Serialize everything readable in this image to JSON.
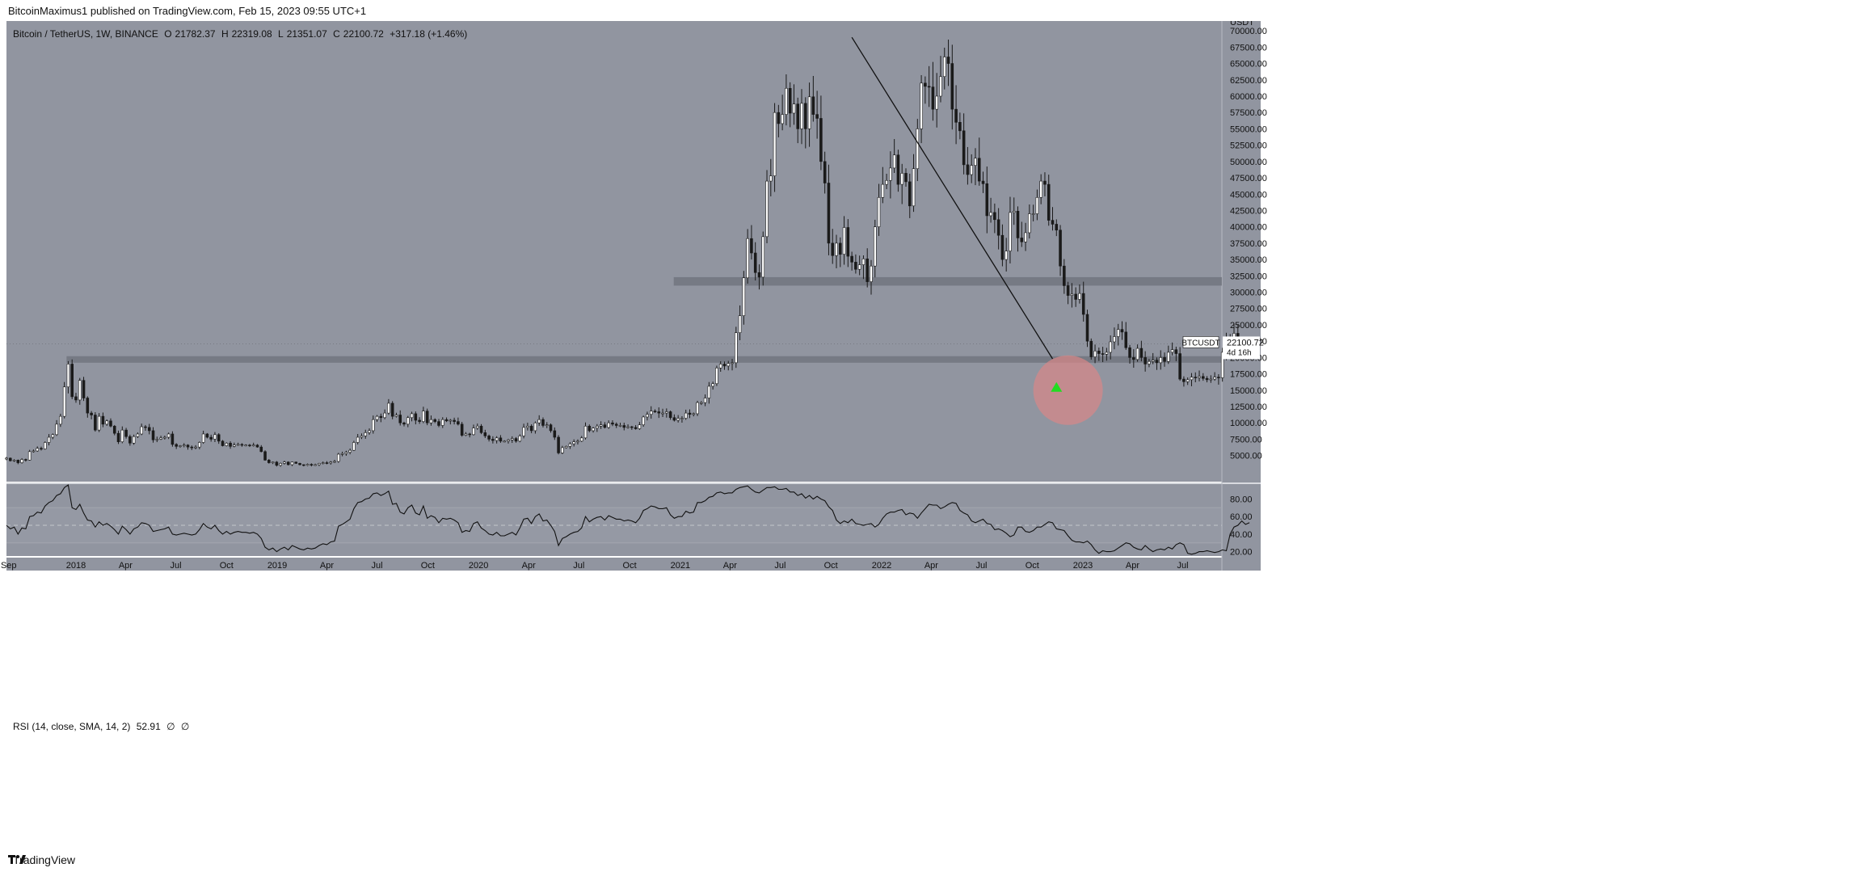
{
  "header": {
    "published": "BitcoinMaximus1 published on TradingView.com, Feb 15, 2023 09:55 UTC+1"
  },
  "footer": {
    "brand": "TradingView"
  },
  "legend": {
    "symbol": "Bitcoin / TetherUS, 1W, BINANCE",
    "open_label": "O",
    "open": "21782.37",
    "high_label": "H",
    "high": "22319.08",
    "low_label": "L",
    "low": "21351.07",
    "close_label": "C",
    "close": "22100.72",
    "change": "+317.18 (+1.46%)"
  },
  "rsi_legend": {
    "label": "RSI (14, close, SMA, 14, 2)",
    "value": "52.91",
    "extra1": "∅",
    "extra2": "∅"
  },
  "price_tag": {
    "symbol": "BTCUSDT",
    "price": "22100.72",
    "countdown": "4d 16h"
  },
  "colors": {
    "background": "#9195a0",
    "up_body": "#ffffff",
    "down_body": "#1a1a1a",
    "wick": "#1a1a1a",
    "zone": "#6e727b",
    "circle": "#d98888",
    "arrow": "#22dd22"
  },
  "chart_data": [
    {
      "type": "candlestick",
      "title": "Bitcoin / TetherUS, 1W, BINANCE",
      "currency": "USDT",
      "y_ticks": [
        "5000.00",
        "7500.00",
        "10000.00",
        "12500.00",
        "15000.00",
        "17500.00",
        "20000.00",
        "22500.00",
        "25000.00",
        "27500.00",
        "30000.00",
        "32500.00",
        "35000.00",
        "37500.00",
        "40000.00",
        "42500.00",
        "45000.00",
        "47500.00",
        "50000.00",
        "52500.00",
        "55000.00",
        "57500.00",
        "60000.00",
        "62500.00",
        "65000.00",
        "67500.00",
        "70000.00"
      ],
      "ylim": [
        1000,
        71500
      ],
      "x_ticks": [
        "Sep",
        "2018",
        "Apr",
        "Jul",
        "Oct",
        "2019",
        "Apr",
        "Jul",
        "Oct",
        "2020",
        "Apr",
        "Jul",
        "Oct",
        "2021",
        "Apr",
        "Jul",
        "Oct",
        "2022",
        "Apr",
        "Jul",
        "Oct",
        "2023",
        "Apr",
        "Jul"
      ],
      "x_tick_dates": [
        "2017-09-01",
        "2018-01-01",
        "2018-04-01",
        "2018-07-01",
        "2018-10-01",
        "2019-01-01",
        "2019-04-01",
        "2019-07-01",
        "2019-10-01",
        "2020-01-01",
        "2020-04-01",
        "2020-07-01",
        "2020-10-01",
        "2021-01-01",
        "2021-04-01",
        "2021-07-01",
        "2021-10-01",
        "2022-01-01",
        "2022-04-01",
        "2022-07-01",
        "2022-10-01",
        "2023-01-01",
        "2023-04-01",
        "2023-07-01"
      ],
      "x_range": [
        "2017-08-28",
        "2023-09-10"
      ],
      "closes_weekly": [
        4600,
        4200,
        4300,
        3900,
        4400,
        4300,
        5600,
        5700,
        6100,
        6000,
        7000,
        7800,
        8200,
        9800,
        11000,
        15500,
        19000,
        14000,
        13500,
        16500,
        13800,
        11500,
        11200,
        8900,
        11000,
        9800,
        10300,
        9500,
        8400,
        7100,
        8900,
        7900,
        6900,
        7900,
        8300,
        9400,
        9300,
        8800,
        7400,
        7500,
        7700,
        7800,
        8300,
        6700,
        6400,
        6500,
        6600,
        6300,
        6200,
        6300,
        7000,
        8300,
        7800,
        7500,
        8200,
        7200,
        6500,
        6900,
        6400,
        6600,
        6700,
        6600,
        6600,
        6500,
        6600,
        6300,
        5600,
        4300,
        3900,
        4000,
        3500,
        3800,
        4000,
        3600,
        4000,
        3800,
        3600,
        3500,
        3650,
        3550,
        3600,
        3800,
        3900,
        3850,
        4000,
        4100,
        5200,
        5300,
        5500,
        5800,
        7000,
        7800,
        8000,
        8500,
        8800,
        10500,
        11000,
        10800,
        11500,
        13000,
        11000,
        11200,
        10000,
        9800,
        10800,
        11400,
        10400,
        10200,
        11800,
        10000,
        10500,
        10200,
        9600,
        10500,
        10300,
        10400,
        10200,
        9800,
        8100,
        8300,
        8200,
        9200,
        9500,
        8500,
        8000,
        7500,
        7300,
        7700,
        7200,
        7200,
        7400,
        7600,
        7200,
        8000,
        9300,
        9500,
        8800,
        10000,
        10500,
        9600,
        9700,
        8800,
        7800,
        5400,
        6200,
        6400,
        6800,
        7100,
        7200,
        7700,
        9500,
        8800,
        9200,
        9500,
        9700,
        9300,
        10000,
        9800,
        9600,
        9600,
        9300,
        9400,
        9300,
        9100,
        9700,
        10900,
        11300,
        11800,
        11700,
        11500,
        11500,
        11700,
        10800,
        10400,
        10700,
        10700,
        11500,
        11300,
        11400,
        13100,
        13100,
        13800,
        15600,
        16000,
        18400,
        19000,
        18700,
        19100,
        19200,
        23800,
        26400,
        32200,
        38200,
        36000,
        33000,
        32300,
        38500,
        47000,
        47800,
        57500,
        55800,
        57200,
        61200,
        57400,
        58800,
        55000,
        58900,
        55000,
        59900,
        57200,
        56600,
        50000,
        46700,
        37500,
        35600,
        37500,
        35800,
        39900,
        35500,
        34600,
        33500,
        34200,
        35100,
        31600,
        34000,
        40000,
        44500,
        46500,
        47100,
        49000,
        51000,
        46500,
        48200,
        46900,
        43200,
        48900,
        55000,
        62000,
        61500,
        61400,
        58000,
        60000,
        63000,
        66000,
        65000,
        58000,
        56000,
        54700,
        49500,
        48000,
        49400,
        50500,
        47000,
        46600,
        41700,
        42200,
        41100,
        38700,
        35000,
        36300,
        42200,
        42400,
        38300,
        37700,
        39100,
        42000,
        42000,
        44500,
        47000,
        46500,
        41000,
        40400,
        39500,
        34000,
        31000,
        29500,
        29700,
        28900,
        29800,
        26600,
        22500,
        20100,
        21000,
        20600,
        20500,
        20800,
        22400,
        23200,
        24300,
        23900,
        21500,
        20000,
        19700,
        21400,
        20000,
        19000,
        19400,
        19600,
        19200,
        20000,
        19400,
        20800,
        21200,
        20600,
        16700,
        16300,
        16600,
        17000,
        16900,
        17100,
        16800,
        16600,
        16700,
        17000,
        16900,
        20800,
        22700,
        23000,
        23700,
        21900,
        22100
      ],
      "zones": [
        {
          "name": "resistance-31k",
          "from": 31000,
          "to": 32300
        },
        {
          "name": "support-19.5k",
          "from": 19200,
          "to": 20200
        }
      ],
      "trendline": {
        "from": {
          "date": "2021-11-08",
          "price": 69000
        },
        "to": {
          "date": "2022-11-07",
          "price": 19800
        }
      },
      "marker": {
        "date": "2022-11-14",
        "price": 15500,
        "shape": "triangle-up"
      },
      "highlight_circle": {
        "date": "2022-12-05",
        "price": 15000
      }
    },
    {
      "type": "line",
      "title": "RSI (14, close, SMA, 14, 2)",
      "y_ticks": [
        "20.00",
        "40.00",
        "60.00",
        "80.00"
      ],
      "ylim": [
        15,
        97
      ],
      "guide_levels": [
        30,
        50,
        70
      ],
      "values": [
        50,
        46,
        48,
        40,
        47,
        46,
        60,
        61,
        65,
        64,
        72,
        76,
        78,
        84,
        86,
        93,
        96,
        70,
        68,
        74,
        64,
        56,
        55,
        48,
        54,
        50,
        52,
        49,
        45,
        40,
        49,
        45,
        40,
        46,
        48,
        53,
        52,
        50,
        43,
        44,
        45,
        46,
        48,
        40,
        39,
        40,
        41,
        40,
        39,
        40,
        45,
        52,
        48,
        46,
        50,
        44,
        40,
        43,
        40,
        42,
        43,
        42,
        42,
        41,
        42,
        40,
        35,
        25,
        22,
        24,
        20,
        23,
        25,
        22,
        27,
        25,
        23,
        22,
        24,
        23,
        24,
        27,
        29,
        28,
        31,
        32,
        49,
        51,
        54,
        57,
        69,
        76,
        77,
        80,
        81,
        86,
        87,
        84,
        86,
        89,
        74,
        75,
        65,
        63,
        70,
        73,
        64,
        62,
        72,
        58,
        61,
        59,
        53,
        58,
        57,
        58,
        56,
        53,
        42,
        44,
        43,
        52,
        54,
        47,
        44,
        40,
        39,
        42,
        38,
        38,
        40,
        42,
        39,
        47,
        57,
        58,
        52,
        60,
        63,
        55,
        56,
        50,
        43,
        27,
        35,
        37,
        40,
        42,
        43,
        47,
        60,
        54,
        57,
        59,
        60,
        56,
        61,
        59,
        57,
        57,
        55,
        56,
        55,
        53,
        58,
        67,
        69,
        72,
        71,
        69,
        69,
        70,
        62,
        58,
        60,
        60,
        66,
        64,
        65,
        76,
        76,
        78,
        82,
        83,
        87,
        88,
        86,
        87,
        87,
        91,
        93,
        94,
        95,
        91,
        88,
        87,
        90,
        93,
        93,
        94,
        91,
        91,
        92,
        88,
        88,
        84,
        86,
        81,
        84,
        80,
        83,
        80,
        78,
        71,
        67,
        56,
        52,
        55,
        53,
        57,
        52,
        51,
        50,
        51,
        52,
        48,
        51,
        58,
        63,
        65,
        65,
        67,
        68,
        62,
        64,
        63,
        58,
        64,
        69,
        74,
        73,
        73,
        69,
        71,
        74,
        76,
        75,
        67,
        64,
        62,
        55,
        53,
        55,
        57,
        52,
        51,
        45,
        46,
        44,
        41,
        37,
        39,
        48,
        48,
        43,
        42,
        44,
        48,
        48,
        51,
        54,
        53,
        46,
        45,
        44,
        38,
        33,
        31,
        31,
        30,
        32,
        28,
        22,
        18,
        21,
        20,
        20,
        21,
        24,
        27,
        30,
        29,
        25,
        23,
        22,
        27,
        23,
        20,
        22,
        23,
        22,
        25,
        23,
        28,
        30,
        28,
        18,
        17,
        18,
        20,
        20,
        21,
        20,
        19,
        20,
        22,
        21,
        40,
        48,
        50,
        55,
        51,
        53
      ]
    }
  ]
}
